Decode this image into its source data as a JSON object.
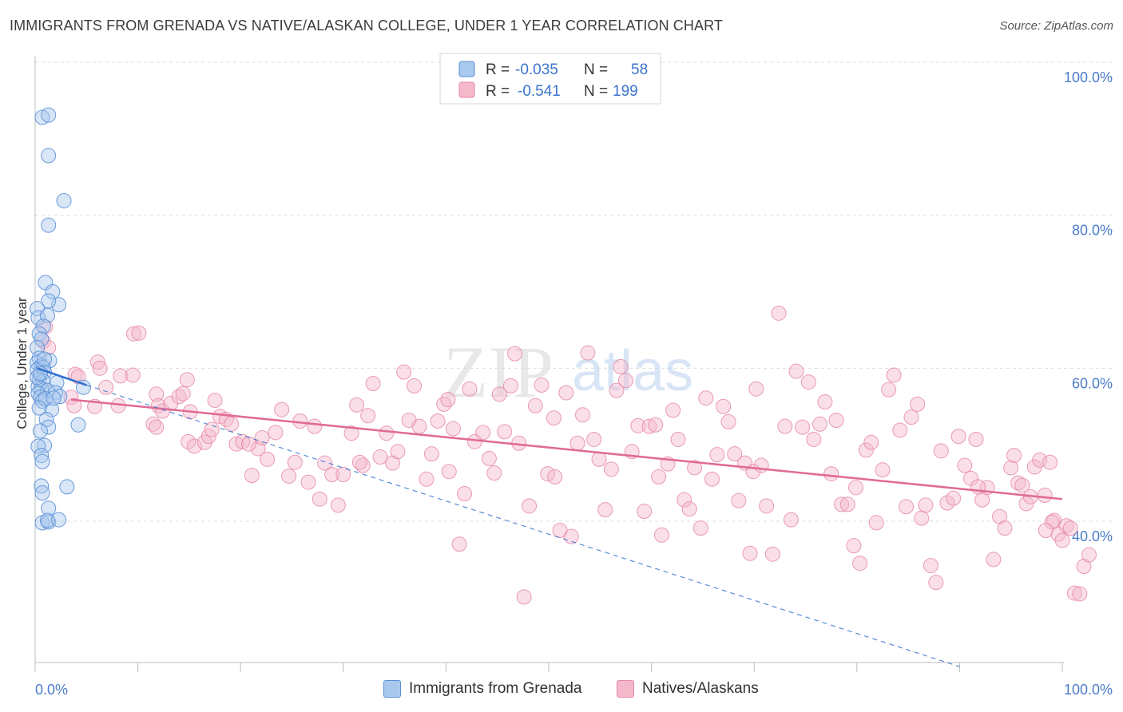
{
  "title": "IMMIGRANTS FROM GRENADA VS NATIVE/ALASKAN COLLEGE, UNDER 1 YEAR CORRELATION CHART",
  "source": "Source: ZipAtlas.com",
  "watermark": {
    "zip": "ZIP",
    "atlas": "atlas"
  },
  "legend_top": {
    "rows": [
      {
        "r_label": "R =",
        "r_value": "-0.035",
        "n_label": "N =",
        "n_value": "58"
      },
      {
        "r_label": "R =",
        "r_value": "-0.541",
        "n_label": "N =",
        "n_value": "199"
      }
    ]
  },
  "legend_bottom": {
    "items": [
      "Immigrants from Grenada",
      "Natives/Alaskans"
    ]
  },
  "chart_data": {
    "type": "scatter",
    "xlabel": "",
    "ylabel": "College, Under 1 year",
    "xlim": [
      0,
      100
    ],
    "ylim": [
      20,
      104
    ],
    "x_tick_labels": [
      "0.0%",
      "100.0%"
    ],
    "y_ticks": [
      40,
      60,
      80,
      100
    ],
    "y_tick_labels": [
      "40.0%",
      "60.0%",
      "80.0%",
      "100.0%"
    ],
    "grid": true,
    "legend_position": "top-center",
    "colors": {
      "blue_fill": "#a8c8ee",
      "blue_stroke": "#5b8fd6",
      "blue_line": "#2f6fcc",
      "pink_fill": "#f4b8cb",
      "pink_stroke": "#e68aa8",
      "pink_line": "#e06b95",
      "tick_label": "#4a7cc9"
    },
    "series": [
      {
        "name": "Immigrants from Grenada",
        "points": [
          [
            0.7,
            92.8
          ],
          [
            1.3,
            93.1
          ],
          [
            1.3,
            87.8
          ],
          [
            2.8,
            81.9
          ],
          [
            1.3,
            78.7
          ],
          [
            1.0,
            71.2
          ],
          [
            1.7,
            70.0
          ],
          [
            2.3,
            68.3
          ],
          [
            1.3,
            68.8
          ],
          [
            0.2,
            67.8
          ],
          [
            0.3,
            66.6
          ],
          [
            1.2,
            66.9
          ],
          [
            0.8,
            65.5
          ],
          [
            0.4,
            64.5
          ],
          [
            0.6,
            63.8
          ],
          [
            0.2,
            62.7
          ],
          [
            0.4,
            61.3
          ],
          [
            1.4,
            61.0
          ],
          [
            0.2,
            60.7
          ],
          [
            0.6,
            60.3
          ],
          [
            0.2,
            59.8
          ],
          [
            0.9,
            59.5
          ],
          [
            0.4,
            58.5
          ],
          [
            0.8,
            58.3
          ],
          [
            2.1,
            58.1
          ],
          [
            0.3,
            57.6
          ],
          [
            0.6,
            57.3
          ],
          [
            1.2,
            57.1
          ],
          [
            2.0,
            56.8
          ],
          [
            4.7,
            57.5
          ],
          [
            0.3,
            56.7
          ],
          [
            0.5,
            56.2
          ],
          [
            2.4,
            56.3
          ],
          [
            0.7,
            55.7
          ],
          [
            1.6,
            54.6
          ],
          [
            1.1,
            53.3
          ],
          [
            1.3,
            52.3
          ],
          [
            4.2,
            52.6
          ],
          [
            0.5,
            51.8
          ],
          [
            0.9,
            49.9
          ],
          [
            0.3,
            49.8
          ],
          [
            0.6,
            48.6
          ],
          [
            0.7,
            47.8
          ],
          [
            0.6,
            44.6
          ],
          [
            3.1,
            44.5
          ],
          [
            0.7,
            43.7
          ],
          [
            1.3,
            41.7
          ],
          [
            0.7,
            39.8
          ],
          [
            1.3,
            39.9
          ],
          [
            1.2,
            40.1
          ],
          [
            2.3,
            40.2
          ],
          [
            0.8,
            60.1
          ],
          [
            0.2,
            58.8
          ],
          [
            1.0,
            56.0
          ],
          [
            0.4,
            54.8
          ],
          [
            1.8,
            56.1
          ],
          [
            0.5,
            59.3
          ],
          [
            0.9,
            61.2
          ]
        ],
        "trend": [
          [
            0.2,
            60.0
          ],
          [
            5.0,
            57.8
          ]
        ],
        "dash_trend": [
          [
            5.0,
            57.8
          ],
          [
            90.0,
            21.0
          ]
        ]
      },
      {
        "name": "Natives/Alaskans",
        "points": [
          [
            1.0,
            65.4
          ],
          [
            0.8,
            63.5
          ],
          [
            1.3,
            62.7
          ],
          [
            3.5,
            56.2
          ],
          [
            3.9,
            59.2
          ],
          [
            3.8,
            55.1
          ],
          [
            4.2,
            58.9
          ],
          [
            6.1,
            60.8
          ],
          [
            6.3,
            60.0
          ],
          [
            6.9,
            57.5
          ],
          [
            5.8,
            55.0
          ],
          [
            8.1,
            55.1
          ],
          [
            8.3,
            59.0
          ],
          [
            9.5,
            59.1
          ],
          [
            9.6,
            64.5
          ],
          [
            10.1,
            64.6
          ],
          [
            11.5,
            52.7
          ],
          [
            11.8,
            56.6
          ],
          [
            12.0,
            55.1
          ],
          [
            12.4,
            54.4
          ],
          [
            13.2,
            55.4
          ],
          [
            14.0,
            56.3
          ],
          [
            14.4,
            56.7
          ],
          [
            14.8,
            58.5
          ],
          [
            15.1,
            54.3
          ],
          [
            14.9,
            50.4
          ],
          [
            15.5,
            49.8
          ],
          [
            16.5,
            50.3
          ],
          [
            16.9,
            51.1
          ],
          [
            17.2,
            52.0
          ],
          [
            17.5,
            55.8
          ],
          [
            18.0,
            53.7
          ],
          [
            18.6,
            53.3
          ],
          [
            19.1,
            52.7
          ],
          [
            19.6,
            50.1
          ],
          [
            20.2,
            50.4
          ],
          [
            21.1,
            46.0
          ],
          [
            21.7,
            49.5
          ],
          [
            22.1,
            50.9
          ],
          [
            22.6,
            48.1
          ],
          [
            23.4,
            51.6
          ],
          [
            24.0,
            54.6
          ],
          [
            24.7,
            45.9
          ],
          [
            25.3,
            47.7
          ],
          [
            25.8,
            53.1
          ],
          [
            26.6,
            45.1
          ],
          [
            27.2,
            52.4
          ],
          [
            27.7,
            42.9
          ],
          [
            28.2,
            47.6
          ],
          [
            28.9,
            46.1
          ],
          [
            29.5,
            42.1
          ],
          [
            30.0,
            46.1
          ],
          [
            30.8,
            51.5
          ],
          [
            31.3,
            55.2
          ],
          [
            31.9,
            47.3
          ],
          [
            32.4,
            53.8
          ],
          [
            32.9,
            58.0
          ],
          [
            33.6,
            48.4
          ],
          [
            34.2,
            51.5
          ],
          [
            34.8,
            47.6
          ],
          [
            35.3,
            49.1
          ],
          [
            35.9,
            59.5
          ],
          [
            36.4,
            53.2
          ],
          [
            36.9,
            57.7
          ],
          [
            37.4,
            52.4
          ],
          [
            38.1,
            45.5
          ],
          [
            38.6,
            48.8
          ],
          [
            39.2,
            53.1
          ],
          [
            39.8,
            55.3
          ],
          [
            40.2,
            55.9
          ],
          [
            40.7,
            52.1
          ],
          [
            41.3,
            37.0
          ],
          [
            41.8,
            43.6
          ],
          [
            42.3,
            57.3
          ],
          [
            42.8,
            50.4
          ],
          [
            43.6,
            51.6
          ],
          [
            44.2,
            48.2
          ],
          [
            44.7,
            46.3
          ],
          [
            45.2,
            56.6
          ],
          [
            45.7,
            51.7
          ],
          [
            46.3,
            57.7
          ],
          [
            46.7,
            61.9
          ],
          [
            47.1,
            50.2
          ],
          [
            47.6,
            30.1
          ],
          [
            48.1,
            42.0
          ],
          [
            48.7,
            55.1
          ],
          [
            49.3,
            57.8
          ],
          [
            49.9,
            46.2
          ],
          [
            50.5,
            53.5
          ],
          [
            51.1,
            38.8
          ],
          [
            51.7,
            56.8
          ],
          [
            52.2,
            38.0
          ],
          [
            52.8,
            50.2
          ],
          [
            53.3,
            53.9
          ],
          [
            53.8,
            62.0
          ],
          [
            54.4,
            50.7
          ],
          [
            54.9,
            48.1
          ],
          [
            55.5,
            41.5
          ],
          [
            56.1,
            46.8
          ],
          [
            56.6,
            57.1
          ],
          [
            57.0,
            60.2
          ],
          [
            57.5,
            58.4
          ],
          [
            58.1,
            49.1
          ],
          [
            58.7,
            52.5
          ],
          [
            59.3,
            41.3
          ],
          [
            59.8,
            52.4
          ],
          [
            60.4,
            52.6
          ],
          [
            61.0,
            38.2
          ],
          [
            61.6,
            47.5
          ],
          [
            62.1,
            54.5
          ],
          [
            62.6,
            50.7
          ],
          [
            63.2,
            42.8
          ],
          [
            63.7,
            41.6
          ],
          [
            64.2,
            47.0
          ],
          [
            64.8,
            39.1
          ],
          [
            65.3,
            56.1
          ],
          [
            65.9,
            45.5
          ],
          [
            66.4,
            48.7
          ],
          [
            67.0,
            55.0
          ],
          [
            67.5,
            53.0
          ],
          [
            68.1,
            48.8
          ],
          [
            68.5,
            42.7
          ],
          [
            69.1,
            47.6
          ],
          [
            69.6,
            35.8
          ],
          [
            70.2,
            57.3
          ],
          [
            70.7,
            47.3
          ],
          [
            71.2,
            42.0
          ],
          [
            71.8,
            35.7
          ],
          [
            72.4,
            67.2
          ],
          [
            73.0,
            52.4
          ],
          [
            73.6,
            40.2
          ],
          [
            74.1,
            59.6
          ],
          [
            74.7,
            52.3
          ],
          [
            75.3,
            58.2
          ],
          [
            75.8,
            50.7
          ],
          [
            76.4,
            52.7
          ],
          [
            76.9,
            55.6
          ],
          [
            77.5,
            46.2
          ],
          [
            78.0,
            53.2
          ],
          [
            78.5,
            42.2
          ],
          [
            79.1,
            42.2
          ],
          [
            79.7,
            36.8
          ],
          [
            80.3,
            34.5
          ],
          [
            80.9,
            49.3
          ],
          [
            81.4,
            50.3
          ],
          [
            81.9,
            39.8
          ],
          [
            82.5,
            46.7
          ],
          [
            83.1,
            57.2
          ],
          [
            83.6,
            59.1
          ],
          [
            84.2,
            51.9
          ],
          [
            84.8,
            41.9
          ],
          [
            85.3,
            53.6
          ],
          [
            85.9,
            55.3
          ],
          [
            86.3,
            40.4
          ],
          [
            86.7,
            42.1
          ],
          [
            87.2,
            34.2
          ],
          [
            87.7,
            32.0
          ],
          [
            88.2,
            49.2
          ],
          [
            88.8,
            42.4
          ],
          [
            89.4,
            43.0
          ],
          [
            89.9,
            51.1
          ],
          [
            90.5,
            47.3
          ],
          [
            91.1,
            45.6
          ],
          [
            91.6,
            50.7
          ],
          [
            92.2,
            42.8
          ],
          [
            92.7,
            44.4
          ],
          [
            93.3,
            35.0
          ],
          [
            93.9,
            40.6
          ],
          [
            94.4,
            39.1
          ],
          [
            95.0,
            47.0
          ],
          [
            95.3,
            48.6
          ],
          [
            95.7,
            45.0
          ],
          [
            96.1,
            44.7
          ],
          [
            96.5,
            42.3
          ],
          [
            96.9,
            43.2
          ],
          [
            97.3,
            47.1
          ],
          [
            97.8,
            48.0
          ],
          [
            98.3,
            43.4
          ],
          [
            98.8,
            47.7
          ],
          [
            99.2,
            40.1
          ],
          [
            99.6,
            38.3
          ],
          [
            100.0,
            37.5
          ],
          [
            100.4,
            39.4
          ],
          [
            100.8,
            39.1
          ],
          [
            101.2,
            30.6
          ],
          [
            101.7,
            30.5
          ],
          [
            102.1,
            34.1
          ],
          [
            102.6,
            35.6
          ],
          [
            99.0,
            39.9
          ],
          [
            98.4,
            38.8
          ],
          [
            91.8,
            44.5
          ],
          [
            79.9,
            44.4
          ],
          [
            69.9,
            46.5
          ],
          [
            60.7,
            45.8
          ],
          [
            50.6,
            45.8
          ],
          [
            40.3,
            46.5
          ],
          [
            31.6,
            47.7
          ],
          [
            20.8,
            50.1
          ],
          [
            11.8,
            52.3
          ]
        ],
        "trend": [
          [
            3.5,
            55.9
          ],
          [
            100.0,
            42.9
          ]
        ]
      }
    ]
  }
}
